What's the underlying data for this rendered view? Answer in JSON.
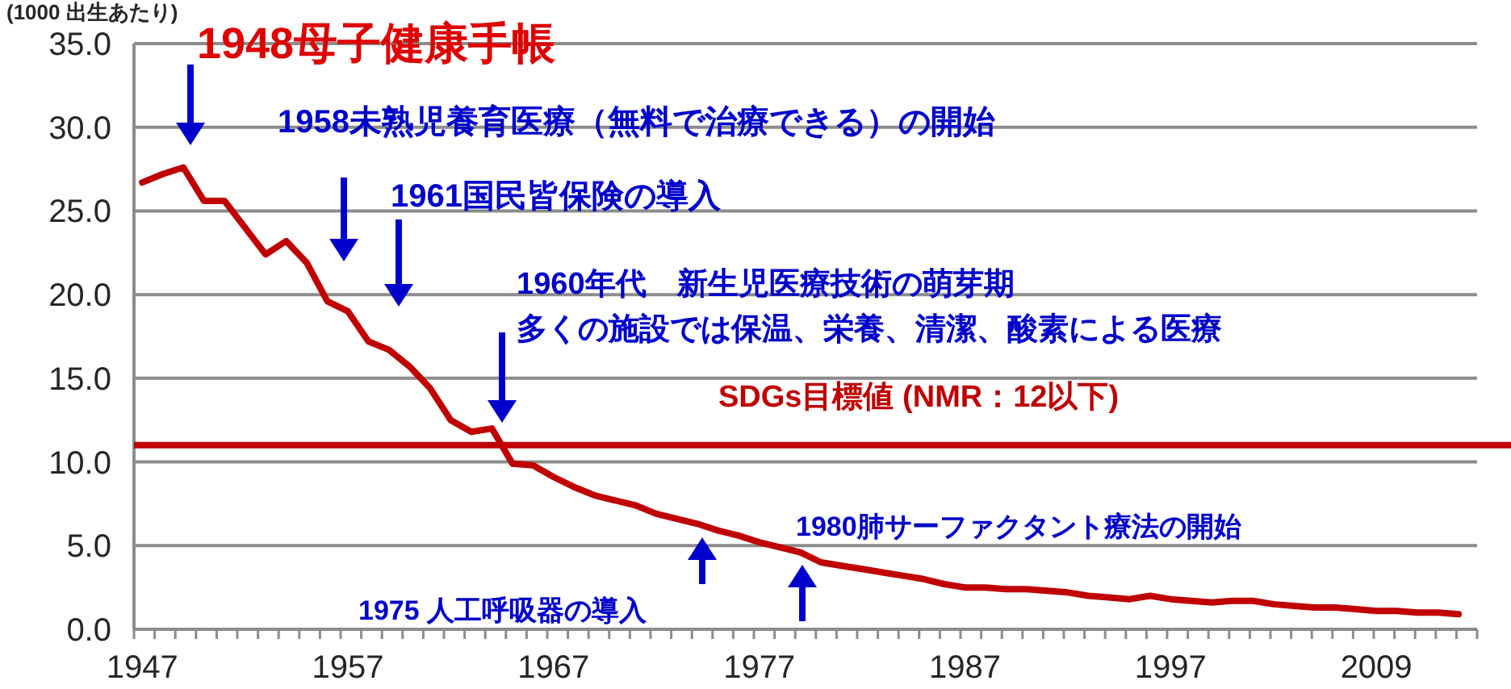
{
  "chart_data": {
    "type": "line",
    "ylabel": "(1000 出生あたり)",
    "categories": [
      "1947",
      null,
      null,
      null,
      null,
      null,
      null,
      null,
      null,
      null,
      "1957",
      null,
      null,
      null,
      null,
      null,
      null,
      null,
      null,
      null,
      "1967",
      null,
      null,
      null,
      null,
      null,
      null,
      null,
      null,
      null,
      "1977",
      null,
      null,
      null,
      null,
      null,
      null,
      null,
      null,
      null,
      "1987",
      null,
      null,
      null,
      null,
      null,
      null,
      null,
      null,
      null,
      "1997",
      null,
      null,
      null,
      null,
      null,
      null,
      null,
      null,
      null,
      "2009",
      null,
      null,
      null,
      null
    ],
    "series": [
      {
        "color": "#c00000",
        "values": [
          26.7,
          27.2,
          27.6,
          25.6,
          25.6,
          24.0,
          22.4,
          23.2,
          21.9,
          19.6,
          19.0,
          17.2,
          16.7,
          15.7,
          14.4,
          12.5,
          11.8,
          12.0,
          9.9,
          9.8,
          9.1,
          8.5,
          8.0,
          7.7,
          7.4,
          6.9,
          6.6,
          6.3,
          5.9,
          5.6,
          5.2,
          4.9,
          4.6,
          4.0,
          3.8,
          3.6,
          3.4,
          3.2,
          3.0,
          2.7,
          2.5,
          2.5,
          2.4,
          2.4,
          2.3,
          2.2,
          2.0,
          1.9,
          1.8,
          2.0,
          1.8,
          1.7,
          1.6,
          1.7,
          1.7,
          1.5,
          1.4,
          1.3,
          1.3,
          1.2,
          1.1,
          1.1,
          1.0,
          1.0,
          0.9
        ]
      }
    ],
    "ylim": [
      0,
      35
    ],
    "yticks": [
      {
        "value": 0,
        "label": "0.0"
      },
      {
        "value": 5,
        "label": "5.0"
      },
      {
        "value": 10,
        "label": "10.0"
      },
      {
        "value": 15,
        "label": "15.0"
      },
      {
        "value": 20,
        "label": "20.0"
      },
      {
        "value": 25,
        "label": "25.0"
      },
      {
        "value": 30,
        "label": "30.0"
      },
      {
        "value": 35,
        "label": "35.0"
      }
    ],
    "grid": "y",
    "marker": "none",
    "line_style": "solid",
    "ref_lines": [
      {
        "axis": "y",
        "value": 11.0,
        "label": "SDGs目標値 (NMR：12以下)",
        "color": "#c00000"
      }
    ],
    "annotations": [
      "1948母子健康手帳",
      "1958未熟児養育医療（無料で治療できる）の開始",
      "1961国民皆保険の導入",
      "1960年代　新生児医療技術の萌芽期",
      "多くの施設では保温、栄養、清潔、酸素による医療",
      "1980肺サーファクタント療法の開始",
      "1975 人工呼吸器の導入"
    ]
  }
}
